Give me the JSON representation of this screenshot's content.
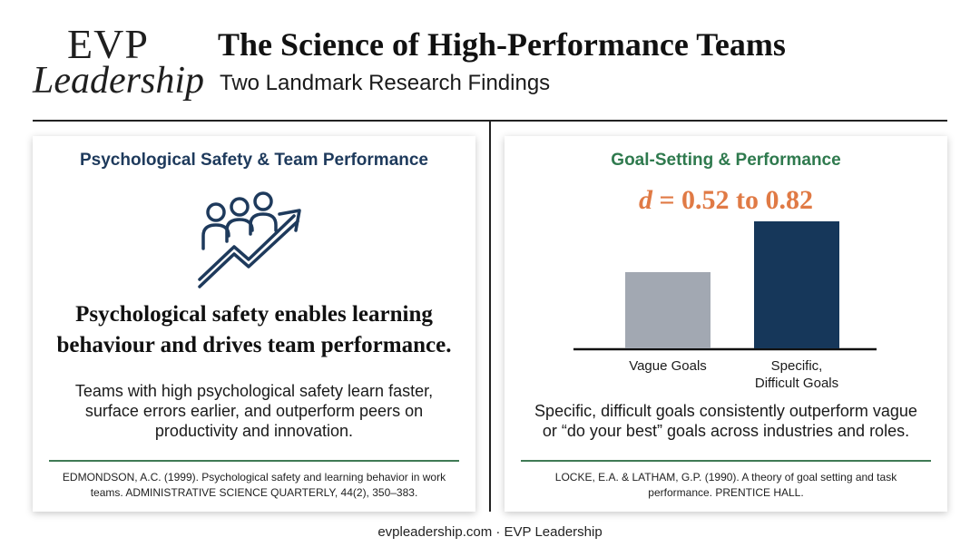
{
  "brand": {
    "logo_line1": "EVP",
    "logo_line2": "Leadership"
  },
  "header": {
    "title": "The Science of High-Performance Teams",
    "subtitle": "Two Landmark Research Findings"
  },
  "left_card": {
    "title": "Psychological Safety & Team Performance",
    "icon": "team-growth-arrow-icon",
    "headline_line1": "Psychological safety enables learning",
    "headline_line2": "behaviour and drives team performance.",
    "body_line1": "Teams with high psychological safety learn faster,",
    "body_line2": "surface errors earlier, and outperform peers on",
    "body_line3": "productivity and innovation.",
    "citation_line1": "EDMONDSON, A.C. (1999). Psychological safety and learning behavior in work",
    "citation_line2": "teams. ADMINISTRATIVE SCIENCE QUARTERLY, 44(2), 350–383."
  },
  "right_card": {
    "title": "Goal-Setting & Performance",
    "effect_symbol": "d",
    "effect_value": " = 0.52 to 0.82",
    "body_line1": "Specific, difficult goals consistently outperform vague",
    "body_line2": "or “do your best” goals across industries and roles.",
    "citation_line1": "LOCKE, E.A. & LATHAM, G.P. (1990). A theory of goal setting and task",
    "citation_line2": "performance. PRENTICE HALL."
  },
  "chart_data": {
    "type": "bar",
    "categories": [
      "Vague Goals",
      "Specific, Difficult Goals"
    ],
    "category_lines": [
      [
        "Vague Goals"
      ],
      [
        "Specific,",
        "Difficult Goals"
      ]
    ],
    "values": [
      0.6,
      1.0
    ],
    "colors": [
      "#a2a8b2",
      "#16375a"
    ],
    "title": "",
    "xlabel": "",
    "ylabel": "",
    "ylim": [
      0,
      1.0
    ]
  },
  "colors": {
    "left_title": "#1e3a5c",
    "right_title": "#2f7a4e",
    "effect": "#e07a45",
    "rule": "#3f7a55"
  },
  "footer": {
    "text": "evpleadership.com · EVP Leadership"
  }
}
